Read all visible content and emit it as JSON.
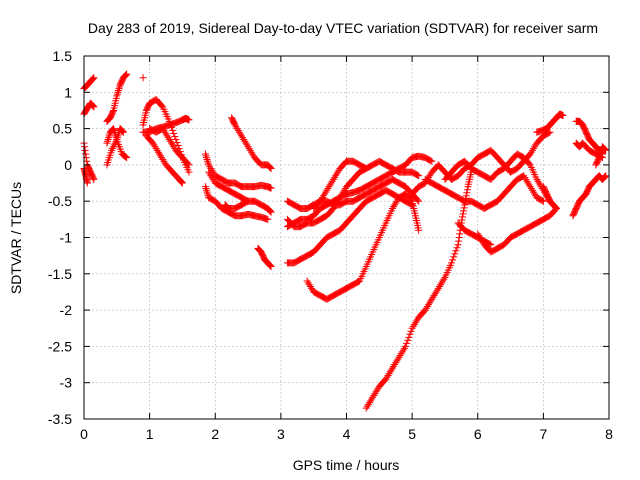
{
  "chart_data": {
    "type": "scatter",
    "title": "Day 283 of 2019, Sidereal Day-to-day VTEC variation (SDTVAR) for receiver sarm",
    "xlabel": "GPS time / hours",
    "ylabel": "SDTVAR / TECUs",
    "xlim": [
      0,
      8
    ],
    "ylim": [
      -3.5,
      1.5
    ],
    "xticks": [
      0,
      1,
      2,
      3,
      4,
      5,
      6,
      7,
      8
    ],
    "yticks": [
      1.5,
      1,
      0.5,
      0,
      -0.5,
      -1,
      -1.5,
      -2,
      -2.5,
      -3,
      -3.5
    ],
    "xtick_labels": [
      "0",
      "1",
      "2",
      "3",
      "4",
      "5",
      "6",
      "7",
      "8"
    ],
    "ytick_labels": [
      "1.5",
      "1",
      "0.5",
      "0",
      "-0.5",
      "-1",
      "-1.5",
      "-2",
      "-2.5",
      "-3",
      "-3.5"
    ],
    "grid": true,
    "marker": "+",
    "color": "#ff0000",
    "series": [
      {
        "name": "s1",
        "x": [
          0.0,
          0.05,
          0.1,
          0.15
        ],
        "y": [
          1.05,
          1.1,
          1.15,
          1.2
        ]
      },
      {
        "name": "s2",
        "x": [
          0.0,
          0.05,
          0.1,
          0.15
        ],
        "y": [
          0.7,
          0.78,
          0.85,
          0.8
        ]
      },
      {
        "name": "s3",
        "x": [
          0.0,
          0.05,
          0.1,
          0.15
        ],
        "y": [
          0.3,
          0.0,
          -0.1,
          -0.2
        ]
      },
      {
        "name": "s4",
        "x": [
          0.0,
          0.03,
          0.05
        ],
        "y": [
          -0.05,
          -0.15,
          -0.25
        ]
      },
      {
        "name": "s5",
        "x": [
          0.35,
          0.4,
          0.45,
          0.5,
          0.55,
          0.6,
          0.65
        ],
        "y": [
          0.6,
          0.65,
          0.75,
          0.95,
          1.1,
          1.2,
          1.25
        ]
      },
      {
        "name": "s6",
        "x": [
          0.35,
          0.4,
          0.45,
          0.5,
          0.55,
          0.6
        ],
        "y": [
          0.3,
          0.45,
          0.5,
          0.35,
          0.5,
          0.45
        ]
      },
      {
        "name": "s7",
        "x": [
          0.35,
          0.42,
          0.5,
          0.58,
          0.65
        ],
        "y": [
          0.0,
          0.2,
          0.35,
          0.15,
          0.1
        ]
      },
      {
        "name": "s8",
        "x": [
          0.9
        ],
        "y": [
          1.2
        ]
      },
      {
        "name": "s9",
        "x": [
          0.9,
          1.0,
          1.1,
          1.2,
          1.3,
          1.4,
          1.5,
          1.55,
          1.6
        ],
        "y": [
          0.45,
          0.45,
          0.5,
          0.52,
          0.55,
          0.58,
          0.62,
          0.64,
          0.62
        ]
      },
      {
        "name": "s10",
        "x": [
          0.9,
          0.95,
          1.0,
          1.1,
          1.2,
          1.3,
          1.4,
          1.5,
          1.6
        ],
        "y": [
          0.55,
          0.75,
          0.85,
          0.9,
          0.8,
          0.6,
          0.35,
          0.1,
          -0.1
        ]
      },
      {
        "name": "s11",
        "x": [
          0.95,
          1.05,
          1.15,
          1.25,
          1.35,
          1.45,
          1.5
        ],
        "y": [
          0.4,
          0.3,
          0.15,
          0.0,
          -0.1,
          -0.2,
          -0.25
        ]
      },
      {
        "name": "s12",
        "x": [
          1.0,
          1.1,
          1.2,
          1.3,
          1.4,
          1.5,
          1.6
        ],
        "y": [
          0.5,
          0.45,
          0.5,
          0.35,
          0.2,
          0.1,
          0.0
        ]
      },
      {
        "name": "s13",
        "x": [
          1.85,
          1.9,
          2.0,
          2.1,
          2.2,
          2.3,
          2.4,
          2.5,
          2.6,
          2.7,
          2.8,
          2.85
        ],
        "y": [
          0.15,
          0.0,
          -0.15,
          -0.2,
          -0.25,
          -0.25,
          -0.3,
          -0.3,
          -0.3,
          -0.28,
          -0.3,
          -0.32
        ]
      },
      {
        "name": "s14",
        "x": [
          1.85,
          1.9,
          2.0,
          2.1,
          2.2,
          2.3,
          2.4,
          2.5,
          2.6,
          2.7,
          2.8
        ],
        "y": [
          -0.3,
          -0.45,
          -0.5,
          -0.6,
          -0.65,
          -0.7,
          -0.7,
          -0.68,
          -0.7,
          -0.72,
          -0.75
        ]
      },
      {
        "name": "s15",
        "x": [
          1.9,
          2.0,
          2.1,
          2.2,
          2.3,
          2.4,
          2.5
        ],
        "y": [
          -0.1,
          -0.25,
          -0.3,
          -0.35,
          -0.4,
          -0.45,
          -0.5
        ]
      },
      {
        "name": "s16",
        "x": [
          2.15,
          2.2,
          2.3,
          2.4,
          2.5,
          2.6,
          2.7,
          2.8,
          2.85
        ],
        "y": [
          -0.55,
          -0.6,
          -0.6,
          -0.55,
          -0.5,
          -0.5,
          -0.55,
          -0.6,
          -0.65
        ]
      },
      {
        "name": "s17",
        "x": [
          2.25,
          2.3,
          2.4,
          2.5,
          2.6,
          2.7,
          2.8,
          2.85
        ],
        "y": [
          0.65,
          0.55,
          0.4,
          0.25,
          0.1,
          0.0,
          0.0,
          -0.05
        ]
      },
      {
        "name": "s18",
        "x": [
          2.65,
          2.7,
          2.75,
          2.8,
          2.85
        ],
        "y": [
          -1.15,
          -1.2,
          -1.3,
          -1.35,
          -1.4
        ]
      },
      {
        "name": "s19",
        "x": [
          3.1,
          3.2,
          3.3,
          3.4,
          3.5,
          3.6,
          3.7,
          3.8,
          3.9,
          4.0,
          4.1,
          4.2,
          4.3,
          4.4,
          4.5,
          4.6,
          4.7,
          4.8,
          4.9,
          5.0,
          5.1
        ],
        "y": [
          -0.75,
          -0.85,
          -0.85,
          -0.8,
          -0.8,
          -0.75,
          -0.7,
          -0.6,
          -0.45,
          -0.3,
          -0.2,
          -0.1,
          -0.05,
          0.0,
          0.05,
          0.0,
          -0.05,
          -0.1,
          -0.1,
          -0.1,
          -0.15
        ]
      },
      {
        "name": "s20",
        "x": [
          3.1,
          3.2,
          3.3,
          3.4,
          3.5,
          3.6,
          3.7,
          3.8,
          3.9,
          4.0,
          4.1,
          4.2,
          4.3,
          4.4,
          4.5,
          4.6,
          4.7,
          4.8,
          4.9,
          5.0,
          5.1,
          5.2,
          5.3
        ],
        "y": [
          -0.85,
          -0.8,
          -0.75,
          -0.75,
          -0.7,
          -0.6,
          -0.55,
          -0.5,
          -0.45,
          -0.4,
          -0.38,
          -0.35,
          -0.3,
          -0.25,
          -0.2,
          -0.15,
          -0.1,
          -0.05,
          0.0,
          0.1,
          0.12,
          0.1,
          0.05
        ]
      },
      {
        "name": "s21",
        "x": [
          3.1,
          3.2,
          3.3,
          3.4,
          3.5,
          3.6,
          3.7,
          3.8,
          3.9,
          4.0,
          4.1,
          4.2,
          4.3,
          4.4,
          4.5,
          4.6,
          4.7,
          4.8,
          4.9,
          5.0
        ],
        "y": [
          -1.35,
          -1.35,
          -1.3,
          -1.25,
          -1.2,
          -1.1,
          -1.0,
          -0.95,
          -0.9,
          -0.8,
          -0.7,
          -0.6,
          -0.5,
          -0.45,
          -0.4,
          -0.35,
          -0.4,
          -0.45,
          -0.5,
          -0.55
        ]
      },
      {
        "name": "s22",
        "x": [
          3.1,
          3.2,
          3.3,
          3.4,
          3.5,
          3.6,
          3.7,
          3.8,
          3.9,
          4.0,
          4.1,
          4.2,
          4.3,
          4.4,
          4.5,
          4.6,
          4.7,
          4.8,
          4.9,
          5.0,
          5.1
        ],
        "y": [
          -0.5,
          -0.55,
          -0.6,
          -0.6,
          -0.55,
          -0.5,
          -0.5,
          -0.55,
          -0.55,
          -0.5,
          -0.5,
          -0.45,
          -0.4,
          -0.35,
          -0.3,
          -0.25,
          -0.2,
          -0.25,
          -0.3,
          -0.4,
          -0.5
        ]
      },
      {
        "name": "s23",
        "x": [
          3.4,
          3.5,
          3.6,
          3.7,
          3.8,
          3.9,
          4.0,
          4.1,
          4.2,
          4.3,
          4.4,
          4.5,
          4.6,
          4.7,
          4.8,
          4.9,
          5.0,
          5.05,
          5.1
        ],
        "y": [
          -1.6,
          -1.75,
          -1.8,
          -1.85,
          -1.8,
          -1.75,
          -1.7,
          -1.65,
          -1.6,
          -1.4,
          -1.2,
          -1.0,
          -0.8,
          -0.6,
          -0.45,
          -0.4,
          -0.5,
          -0.7,
          -0.9
        ]
      },
      {
        "name": "s24",
        "x": [
          3.5,
          3.6,
          3.7,
          3.8,
          3.9,
          4.0,
          4.1,
          4.2,
          4.3
        ],
        "y": [
          -0.6,
          -0.5,
          -0.35,
          -0.2,
          -0.05,
          0.05,
          0.05,
          0.0,
          -0.05
        ]
      },
      {
        "name": "s25",
        "x": [
          4.3,
          4.4,
          4.5,
          4.6,
          4.7,
          4.8,
          4.9,
          5.0,
          5.1,
          5.2,
          5.3,
          5.4,
          5.5,
          5.6,
          5.7,
          5.75,
          5.8,
          5.85,
          5.9
        ],
        "y": [
          -3.35,
          -3.2,
          -3.05,
          -2.95,
          -2.8,
          -2.65,
          -2.5,
          -2.25,
          -2.1,
          -2.0,
          -1.85,
          -1.7,
          -1.55,
          -1.35,
          -1.1,
          -0.8,
          -0.55,
          -0.3,
          -0.1
        ]
      },
      {
        "name": "s26",
        "x": [
          5.0,
          5.1,
          5.2,
          5.3,
          5.4,
          5.5,
          5.6,
          5.7,
          5.8,
          5.9,
          6.0,
          6.1,
          6.2,
          6.3,
          6.4,
          6.5,
          6.6,
          6.7,
          6.8,
          6.9,
          7.0,
          7.1
        ],
        "y": [
          -0.4,
          -0.3,
          -0.25,
          -0.1,
          0.0,
          -0.1,
          -0.2,
          -0.15,
          -0.05,
          0.0,
          0.1,
          0.15,
          0.2,
          0.1,
          0.0,
          -0.1,
          -0.05,
          0.05,
          0.15,
          0.3,
          0.4,
          0.45
        ]
      },
      {
        "name": "s27",
        "x": [
          5.2,
          5.3,
          5.4,
          5.5,
          5.6,
          5.7,
          5.8,
          5.9,
          6.0,
          6.1,
          6.2,
          6.3,
          6.4,
          6.5,
          6.6,
          6.7,
          6.8,
          6.9,
          7.0
        ],
        "y": [
          -0.2,
          -0.25,
          -0.3,
          -0.35,
          -0.4,
          -0.45,
          -0.5,
          -0.5,
          -0.55,
          -0.6,
          -0.55,
          -0.5,
          -0.4,
          -0.3,
          -0.2,
          -0.15,
          -0.3,
          -0.45,
          -0.5
        ]
      },
      {
        "name": "s28",
        "x": [
          5.5,
          5.6,
          5.7,
          5.8,
          5.9,
          6.0,
          6.1,
          6.2,
          6.3,
          6.4,
          6.5,
          6.6,
          6.7,
          6.8,
          6.9,
          7.0,
          7.1,
          7.2
        ],
        "y": [
          -0.2,
          -0.1,
          0.0,
          0.05,
          -0.05,
          -0.1,
          -0.15,
          -0.2,
          -0.1,
          -0.05,
          0.05,
          0.15,
          0.1,
          0.0,
          -0.2,
          -0.35,
          -0.5,
          -0.6
        ]
      },
      {
        "name": "s29",
        "x": [
          6.0,
          6.1,
          6.2,
          6.3,
          6.4,
          6.5,
          6.6,
          6.7,
          6.8,
          6.9,
          7.0,
          7.1,
          7.2
        ],
        "y": [
          -0.95,
          -1.1,
          -1.2,
          -1.15,
          -1.1,
          -1.0,
          -0.95,
          -0.9,
          -0.85,
          -0.8,
          -0.75,
          -0.7,
          -0.6
        ]
      },
      {
        "name": "s30",
        "x": [
          5.7,
          5.8,
          5.9,
          6.0,
          6.1,
          6.2
        ],
        "y": [
          -0.8,
          -0.9,
          -0.95,
          -1.0,
          -1.05,
          -1.1
        ]
      },
      {
        "name": "s31",
        "x": [
          6.9,
          7.0,
          7.05,
          7.1,
          7.15,
          7.2,
          7.25,
          7.3
        ],
        "y": [
          0.45,
          0.48,
          0.5,
          0.55,
          0.6,
          0.65,
          0.7,
          0.68
        ]
      },
      {
        "name": "s32",
        "x": [
          7.0,
          7.05,
          7.1,
          7.15,
          7.2
        ],
        "y": [
          -0.3,
          -0.4,
          -0.5,
          -0.55,
          -0.6
        ]
      },
      {
        "name": "s33",
        "x": [
          7.5,
          7.55,
          7.6,
          7.65,
          7.7,
          7.75,
          7.8,
          7.85,
          7.9
        ],
        "y": [
          0.6,
          0.6,
          0.55,
          0.45,
          0.35,
          0.3,
          0.25,
          0.2,
          0.15
        ]
      },
      {
        "name": "s34",
        "x": [
          7.5,
          7.55,
          7.6,
          7.7,
          7.8,
          7.9
        ],
        "y": [
          0.3,
          0.25,
          0.3,
          0.2,
          0.15,
          0.1
        ]
      },
      {
        "name": "s35",
        "x": [
          7.45,
          7.5,
          7.55,
          7.6,
          7.65,
          7.7,
          7.75,
          7.8,
          7.85,
          7.9,
          7.95
        ],
        "y": [
          -0.7,
          -0.6,
          -0.5,
          -0.45,
          -0.4,
          -0.3,
          -0.25,
          -0.2,
          -0.15,
          -0.2,
          -0.15
        ]
      },
      {
        "name": "s36",
        "x": [
          7.8,
          7.85,
          7.9,
          7.95
        ],
        "y": [
          0.0,
          0.1,
          0.25,
          0.2
        ]
      }
    ]
  }
}
